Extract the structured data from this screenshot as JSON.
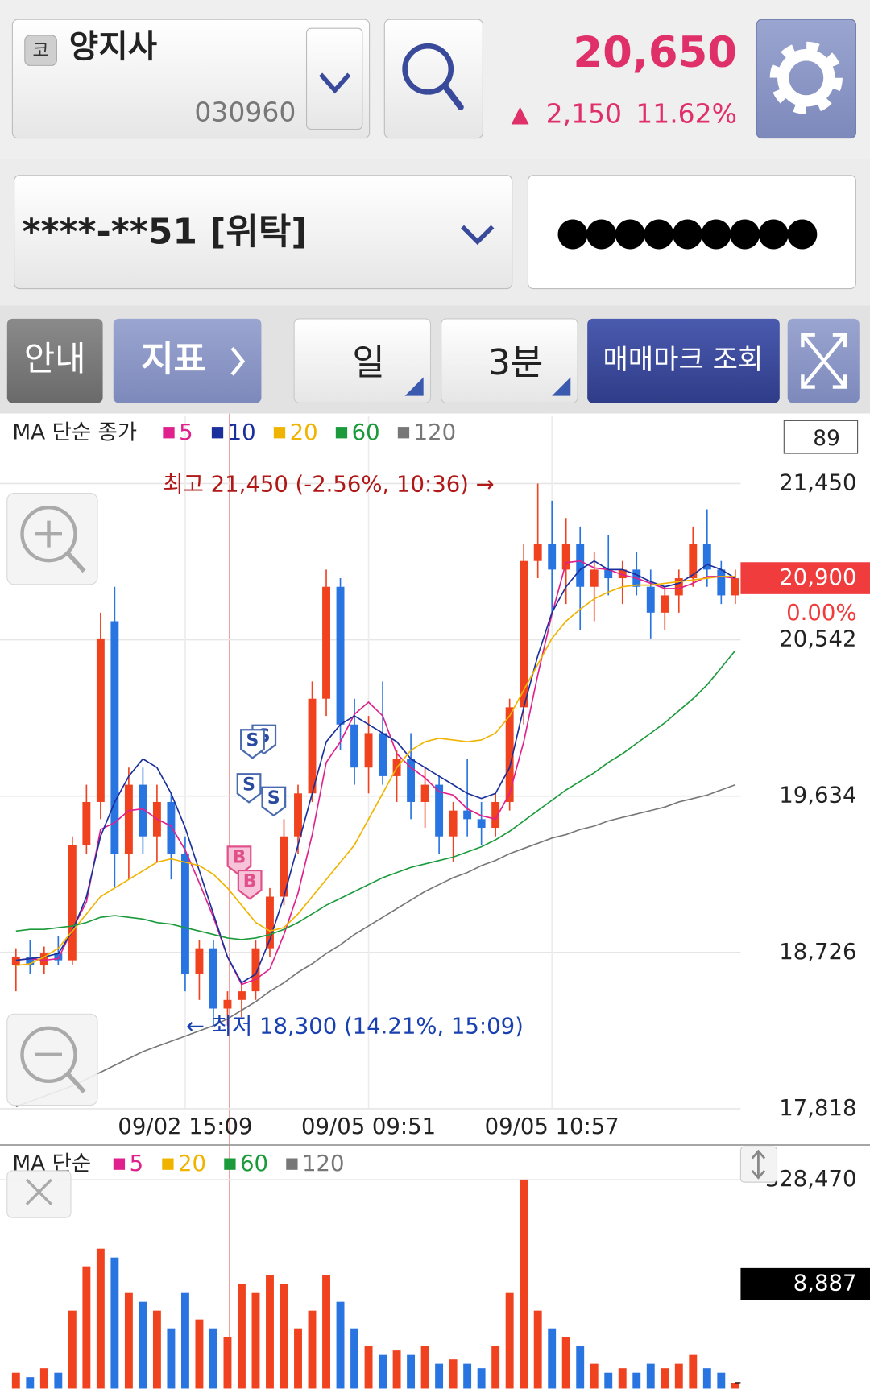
{
  "header": {
    "market_badge": "코",
    "stock_name": "양지사",
    "stock_code": "030960",
    "price": "20,650",
    "change_arrow": "▲",
    "change": "2,150",
    "change_rate": "11.62%"
  },
  "account": {
    "number": "****-**51 [위탁]",
    "password": "●●●●●●●●●"
  },
  "toolbar": {
    "guide": "안내",
    "indicator": "지표",
    "period": "일",
    "interval": "3분",
    "trade_marks": "매매마크 조회"
  },
  "chart_data": [
    {
      "type": "candlestick",
      "legend_title": "MA 단순 종가",
      "count": "89",
      "high_note": "최고 21,450 (-2.56%, 10:36) →",
      "low_note": "← 최저 18,300 (14.21%, 15:09)",
      "trade_marks": [
        "S",
        "S",
        "S",
        "S",
        "B",
        "B"
      ],
      "up_color": "#f0421e",
      "down_color": "#2874e0",
      "categories": [
        null,
        null,
        null,
        null,
        null,
        null,
        null,
        null,
        null,
        null,
        null,
        null,
        "09/02 15:09",
        null,
        null,
        null,
        null,
        null,
        null,
        null,
        null,
        null,
        null,
        null,
        null,
        "09/05 09:51",
        null,
        null,
        null,
        null,
        null,
        null,
        null,
        null,
        null,
        null,
        null,
        null,
        "09/05 10:57",
        null,
        null,
        null,
        null,
        null,
        null,
        null,
        null,
        null,
        null,
        null,
        null,
        null
      ],
      "open": [
        18650,
        18700,
        18650,
        18720,
        18680,
        19350,
        19600,
        20650,
        19300,
        19700,
        19400,
        19600,
        19300,
        18600,
        18750,
        18400,
        18450,
        18500,
        18750,
        19050,
        19400,
        19650,
        20200,
        20850,
        20050,
        19800,
        20000,
        19750,
        19850,
        19600,
        19700,
        19400,
        19550,
        19500,
        19450,
        19600,
        20150,
        21000,
        21100,
        20950,
        21100,
        20850,
        20950,
        20900,
        20950,
        20850,
        20700,
        20800,
        20900,
        21100,
        20950,
        20800
      ],
      "high": [
        18750,
        18800,
        18760,
        18820,
        19400,
        19700,
        20700,
        20850,
        19800,
        19800,
        19700,
        19650,
        19400,
        18800,
        18800,
        18500,
        18550,
        18800,
        19100,
        19500,
        19700,
        20300,
        20950,
        20900,
        20200,
        20100,
        20300,
        19900,
        20000,
        19800,
        19750,
        19600,
        19850,
        19600,
        19650,
        20200,
        21100,
        21450,
        21350,
        21250,
        21200,
        21050,
        21150,
        21000,
        21050,
        20950,
        20850,
        20950,
        21200,
        21300,
        21000,
        20950
      ],
      "low": [
        18500,
        18600,
        18600,
        18650,
        18650,
        19300,
        19500,
        19100,
        19150,
        19300,
        19250,
        19150,
        18500,
        18450,
        18300,
        18300,
        18350,
        18450,
        18700,
        19000,
        19300,
        19600,
        20100,
        19900,
        19700,
        19650,
        19700,
        19600,
        19500,
        19450,
        19300,
        19250,
        19400,
        19350,
        19400,
        19550,
        20050,
        20900,
        20700,
        20750,
        20600,
        20650,
        20800,
        20750,
        20800,
        20550,
        20600,
        20700,
        20850,
        20850,
        20750,
        20750
      ],
      "close": [
        18700,
        18650,
        18720,
        18680,
        19350,
        19600,
        20550,
        19300,
        19700,
        19400,
        19600,
        19300,
        18600,
        18750,
        18400,
        18450,
        18500,
        18750,
        19050,
        19400,
        19650,
        20200,
        20850,
        20050,
        19800,
        20000,
        19750,
        19850,
        19600,
        19700,
        19400,
        19550,
        19500,
        19450,
        19600,
        20150,
        21000,
        21100,
        20950,
        21100,
        20850,
        20950,
        20900,
        20950,
        20850,
        20700,
        20800,
        20900,
        21100,
        20950,
        20800,
        20900
      ],
      "series": [
        {
          "name": "5",
          "color": "#e0208c",
          "values": [
            18680,
            18690,
            18680,
            18690,
            18860,
            19020,
            19440,
            19480,
            19550,
            19560,
            19500,
            19460,
            19320,
            19130,
            18930,
            18700,
            18540,
            18570,
            18630,
            18830,
            19070,
            19410,
            19830,
            19950,
            20110,
            20180,
            20100,
            19880,
            19800,
            19740,
            19660,
            19640,
            19560,
            19520,
            19500,
            19650,
            19950,
            20340,
            20690,
            20990,
            21000,
            20960,
            20950,
            20920,
            20900,
            20870,
            20840,
            20840,
            20870,
            20910,
            20910,
            20900
          ]
        },
        {
          "name": "10",
          "color": "#1a2f9c",
          "values": [
            18680,
            18690,
            18700,
            18720,
            18850,
            19050,
            19400,
            19600,
            19750,
            19850,
            19800,
            19650,
            19450,
            19200,
            18950,
            18700,
            18550,
            18600,
            18800,
            19050,
            19350,
            19650,
            19950,
            20050,
            20100,
            20050,
            20000,
            19950,
            19850,
            19800,
            19750,
            19700,
            19650,
            19620,
            19650,
            19800,
            20150,
            20450,
            20700,
            20850,
            20950,
            21000,
            20950,
            20950,
            20920,
            20880,
            20850,
            20870,
            20920,
            20980,
            20950,
            20900
          ]
        },
        {
          "name": "20",
          "color": "#f0b400",
          "values": [
            18650,
            18660,
            18700,
            18750,
            18850,
            18950,
            19050,
            19100,
            19150,
            19200,
            19250,
            19270,
            19250,
            19230,
            19180,
            19100,
            19000,
            18900,
            18850,
            18870,
            18950,
            19050,
            19150,
            19250,
            19350,
            19500,
            19650,
            19800,
            19900,
            19950,
            19970,
            19960,
            19950,
            19960,
            20000,
            20100,
            20250,
            20400,
            20550,
            20650,
            20720,
            20780,
            20820,
            20850,
            20860,
            20860,
            20870,
            20880,
            20890,
            20900,
            20910,
            20910
          ]
        },
        {
          "name": "60",
          "color": "#1a9a3a",
          "values": [
            18850,
            18860,
            18860,
            18870,
            18880,
            18900,
            18930,
            18940,
            18930,
            18920,
            18900,
            18890,
            18870,
            18850,
            18830,
            18810,
            18800,
            18810,
            18830,
            18860,
            18900,
            18950,
            19000,
            19040,
            19080,
            19120,
            19160,
            19190,
            19220,
            19240,
            19260,
            19280,
            19310,
            19340,
            19380,
            19430,
            19490,
            19550,
            19610,
            19670,
            19720,
            19770,
            19830,
            19880,
            19940,
            20000,
            20060,
            20130,
            20200,
            20280,
            20380,
            20480
          ]
        },
        {
          "name": "120",
          "color": "#777777",
          "values": [
            17830,
            17860,
            17890,
            17920,
            17950,
            17990,
            18030,
            18070,
            18110,
            18150,
            18180,
            18210,
            18240,
            18270,
            18300,
            18340,
            18390,
            18440,
            18500,
            18550,
            18610,
            18660,
            18720,
            18770,
            18830,
            18880,
            18930,
            18980,
            19030,
            19080,
            19120,
            19160,
            19190,
            19230,
            19260,
            19300,
            19330,
            19360,
            19390,
            19410,
            19440,
            19460,
            19490,
            19510,
            19530,
            19550,
            19570,
            19600,
            19620,
            19640,
            19670,
            19700
          ]
        }
      ],
      "ylim": [
        17818,
        21841
      ],
      "yticks": [
        {
          "value": 17818,
          "label": "17,818"
        },
        {
          "value": 18726,
          "label": "18,726"
        },
        {
          "value": 19634,
          "label": "19,634"
        },
        {
          "value": 20542,
          "label": "20,542"
        },
        {
          "value": 21450,
          "label": "21,450"
        }
      ],
      "current": {
        "value": 20900,
        "label": "20,900",
        "change": "0.00%"
      },
      "grid": true
    },
    {
      "type": "bar",
      "legend_title": "MA 단순",
      "legend": [
        {
          "name": "5",
          "color": "#e0208c"
        },
        {
          "name": "20",
          "color": "#f0b400"
        },
        {
          "name": "60",
          "color": "#1a9a3a"
        },
        {
          "name": "120",
          "color": "#777777"
        }
      ],
      "values": [
        25000,
        18100,
        32000,
        25000,
        122500,
        192100,
        219900,
        206000,
        150300,
        136400,
        122500,
        94600,
        150300,
        108600,
        94600,
        80700,
        164200,
        150300,
        178200,
        164200,
        94600,
        122500,
        178200,
        136400,
        94600,
        66800,
        52900,
        59900,
        52900,
        66800,
        39000,
        45900,
        39000,
        32000,
        66800,
        150300,
        328470,
        122500,
        94600,
        80700,
        66800,
        39000,
        25000,
        32000,
        25000,
        39000,
        32000,
        39000,
        52900,
        32000,
        25000,
        8887
      ],
      "ylim": [
        0,
        328470
      ],
      "yticks": [
        {
          "value": 328470,
          "label": "328,470"
        }
      ],
      "current": {
        "value": 8887,
        "label": "8,887"
      }
    }
  ]
}
